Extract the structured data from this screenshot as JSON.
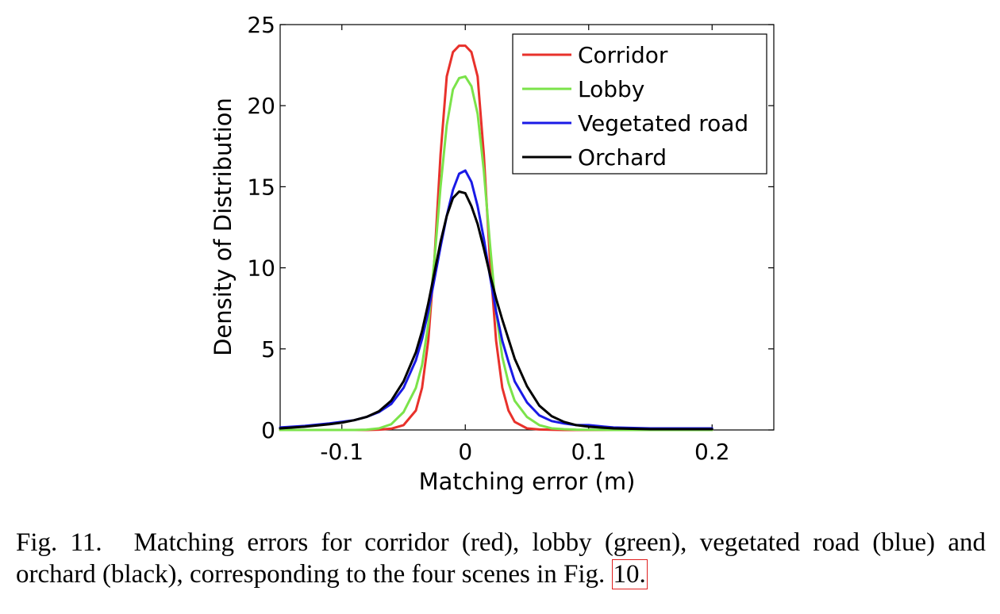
{
  "chart_data": {
    "type": "line",
    "xlabel": "Matching error (m)",
    "ylabel": "Density of Distribution",
    "xlim": [
      -0.15,
      0.25
    ],
    "ylim": [
      0,
      25
    ],
    "xticks": [
      -0.1,
      0,
      0.1,
      0.2
    ],
    "xtick_labels": [
      "-0.1",
      "0",
      "0.1",
      "0.2"
    ],
    "yticks": [
      0,
      5,
      10,
      15,
      20,
      25
    ],
    "ytick_labels": [
      "0",
      "5",
      "10",
      "15",
      "20",
      "25"
    ],
    "grid": false,
    "legend_position": "top-right",
    "x": [
      -0.15,
      -0.13,
      -0.11,
      -0.1,
      -0.09,
      -0.08,
      -0.07,
      -0.06,
      -0.05,
      -0.04,
      -0.035,
      -0.03,
      -0.025,
      -0.02,
      -0.015,
      -0.01,
      -0.005,
      0,
      0.005,
      0.01,
      0.015,
      0.02,
      0.025,
      0.03,
      0.035,
      0.04,
      0.05,
      0.06,
      0.07,
      0.08,
      0.09,
      0.1,
      0.12,
      0.15,
      0.2
    ],
    "series": [
      {
        "name": "Corridor",
        "color": "#e8312b",
        "values": [
          0,
          0,
          0,
          0,
          0,
          0,
          0.02,
          0.08,
          0.3,
          1.2,
          2.6,
          5.5,
          10.5,
          17.0,
          21.8,
          23.3,
          23.7,
          23.7,
          23.3,
          21.8,
          17.0,
          10.5,
          5.5,
          2.6,
          1.2,
          0.5,
          0.1,
          0.03,
          0.01,
          0,
          0,
          0,
          0,
          0,
          0
        ]
      },
      {
        "name": "Lobby",
        "color": "#7be34a",
        "values": [
          0,
          0,
          0,
          0,
          0,
          0.02,
          0.1,
          0.35,
          1.1,
          2.6,
          4.0,
          6.5,
          10.5,
          15.0,
          18.8,
          21.0,
          21.7,
          21.8,
          21.2,
          19.5,
          16.0,
          11.5,
          7.3,
          4.5,
          2.9,
          1.8,
          0.8,
          0.3,
          0.1,
          0.05,
          0.02,
          0.01,
          0,
          0,
          0
        ]
      },
      {
        "name": "Vegetated road",
        "color": "#1a1ae6",
        "values": [
          0.15,
          0.25,
          0.4,
          0.5,
          0.6,
          0.8,
          1.1,
          1.6,
          2.6,
          4.3,
          5.6,
          7.3,
          9.3,
          11.3,
          13.2,
          14.8,
          15.8,
          16.0,
          15.3,
          13.8,
          11.8,
          9.5,
          7.3,
          5.5,
          4.2,
          3.0,
          1.7,
          0.9,
          0.55,
          0.4,
          0.3,
          0.3,
          0.15,
          0.1,
          0.1
        ]
      },
      {
        "name": "Orchard",
        "color": "#000000",
        "values": [
          0.1,
          0.2,
          0.35,
          0.45,
          0.6,
          0.8,
          1.15,
          1.8,
          3.0,
          4.8,
          6.1,
          7.8,
          9.7,
          11.6,
          13.2,
          14.3,
          14.7,
          14.6,
          13.8,
          12.7,
          11.2,
          9.6,
          8.1,
          6.8,
          5.6,
          4.4,
          2.7,
          1.5,
          0.85,
          0.5,
          0.3,
          0.2,
          0.1,
          0.05,
          0.05
        ]
      }
    ]
  },
  "caption": {
    "label": "Fig. 11.",
    "text": "Matching errors for corridor (red), lobby (green), vegetated road (blue) and orchard (black), corresponding to the four scenes in Fig.",
    "ref": "10."
  }
}
